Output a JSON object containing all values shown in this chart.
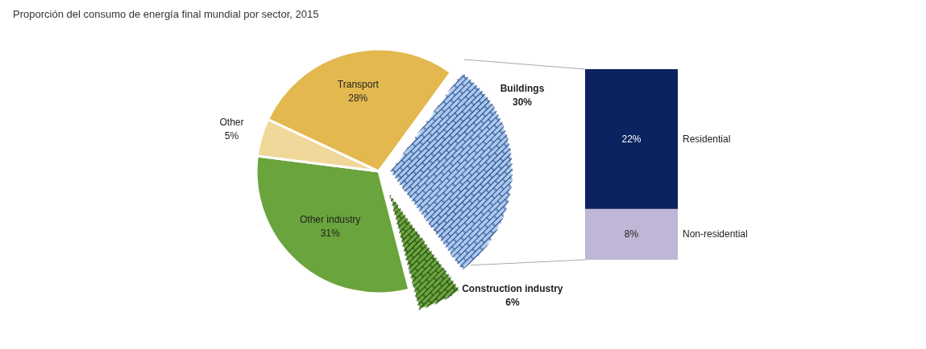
{
  "chart_data": [
    {
      "type": "pie",
      "title": "Proporción del consumo de energía final mundial por sector, 2015",
      "categories": [
        "Buildings",
        "Construction industry",
        "Other industry",
        "Other",
        "Transport"
      ],
      "values": [
        30,
        6,
        31,
        5,
        28
      ],
      "value_labels": [
        "30%",
        "6%",
        "31%",
        "5%",
        "28%"
      ],
      "colors": [
        "#a9c8ef",
        "#6aa43c",
        "#6aa43c",
        "#f0d89a",
        "#e2b84f"
      ]
    },
    {
      "type": "bar",
      "stacked": true,
      "categories": [
        null
      ],
      "series": [
        {
          "name": "Non-residential",
          "color": "#c0b6d6",
          "values": [
            8
          ],
          "value_labels": [
            "8%"
          ]
        },
        {
          "name": "Residential",
          "color": "#0b2360",
          "values": [
            22
          ],
          "value_labels": [
            "22%"
          ]
        }
      ]
    }
  ]
}
